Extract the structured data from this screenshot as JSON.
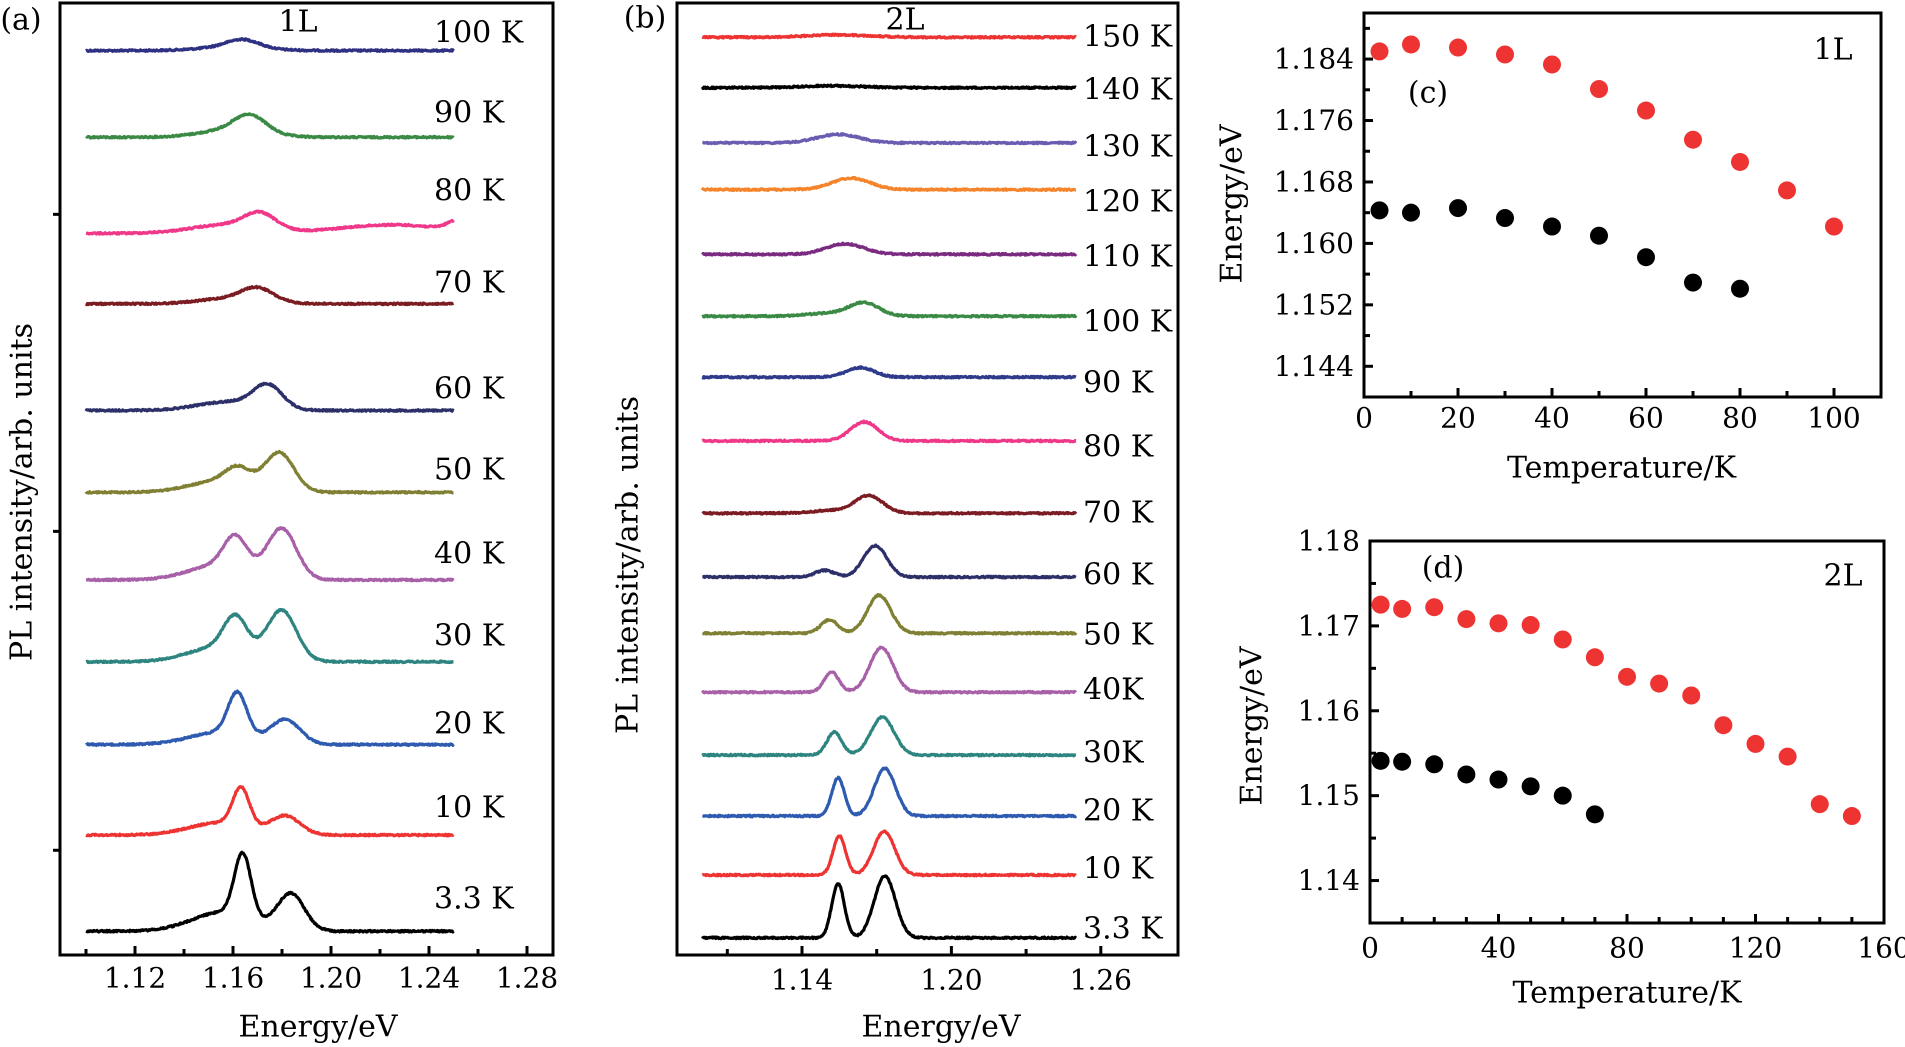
{
  "chart_data": [
    {
      "panel": "(a)",
      "type": "line",
      "annotation": "1L",
      "xlabel": "Energy/eV",
      "ylabel": "PL intensity/arb. units",
      "xlim": [
        1.09,
        1.29
      ],
      "ylim": [
        0,
        100
      ],
      "xticks": [
        "1.12",
        "1.16",
        "1.20",
        "1.24",
        "1.28"
      ],
      "xtick_values": [
        1.12,
        1.16,
        1.2,
        1.24,
        1.28
      ],
      "x_minor_ticks": [
        1.1,
        1.14,
        1.18,
        1.22,
        1.26
      ],
      "y_unlabeled_ticks": [
        11.0,
        44.5,
        77.8
      ],
      "x_range_data": [
        1.1,
        1.25
      ],
      "series": [
        {
          "name": "100 K",
          "color": "#2e3182",
          "offset": 95.0,
          "peaks": [
            {
              "energy": 1.16,
              "height": 0.4,
              "fwhm": 0.03
            },
            {
              "energy": 1.164,
              "height": 0.8,
              "fwhm": 0.015
            }
          ]
        },
        {
          "name": "90 K",
          "color": "#3a8a45",
          "offset": 85.9,
          "peaks": [
            {
              "energy": 1.16,
              "height": 0.8,
              "fwhm": 0.03
            },
            {
              "energy": 1.167,
              "height": 1.7,
              "fwhm": 0.015
            }
          ]
        },
        {
          "name": "80 K",
          "color": "#f0388a",
          "offset": 75.8,
          "peaks": [
            {
              "energy": 1.158,
              "height": 0.9,
              "fwhm": 0.035
            },
            {
              "energy": 1.171,
              "height": 1.6,
              "fwhm": 0.015
            },
            {
              "energy": 1.225,
              "height": 0.9,
              "fwhm": 0.05
            },
            {
              "energy": 1.252,
              "height": 1.0,
              "fwhm": 0.01
            }
          ]
        },
        {
          "name": "70 K",
          "color": "#7a1c22",
          "offset": 68.4,
          "peaks": [
            {
              "energy": 1.16,
              "height": 0.6,
              "fwhm": 0.03
            },
            {
              "energy": 1.17,
              "height": 1.3,
              "fwhm": 0.015
            }
          ]
        },
        {
          "name": "60 K",
          "color": "#2d3068",
          "offset": 57.2,
          "peaks": [
            {
              "energy": 1.158,
              "height": 0.9,
              "fwhm": 0.03
            },
            {
              "energy": 1.1742,
              "height": 2.4,
              "fwhm": 0.014
            }
          ]
        },
        {
          "name": "50 K",
          "color": "#808034",
          "offset": 48.6,
          "peaks": [
            {
              "energy": 1.155,
              "height": 1.2,
              "fwhm": 0.03
            },
            {
              "energy": 1.162,
              "height": 1.7,
              "fwhm": 0.012
            },
            {
              "energy": 1.179,
              "height": 4.0,
              "fwhm": 0.014
            }
          ]
        },
        {
          "name": "40 K",
          "color": "#a860a8",
          "offset": 39.4,
          "peaks": [
            {
              "energy": 1.155,
              "height": 1.6,
              "fwhm": 0.03
            },
            {
              "energy": 1.161,
              "height": 3.3,
              "fwhm": 0.011
            },
            {
              "energy": 1.18,
              "height": 5.2,
              "fwhm": 0.014
            }
          ]
        },
        {
          "name": "30 K",
          "color": "#2e8580",
          "offset": 30.8,
          "peaks": [
            {
              "energy": 1.155,
              "height": 1.6,
              "fwhm": 0.03
            },
            {
              "energy": 1.161,
              "height": 3.5,
              "fwhm": 0.011
            },
            {
              "energy": 1.18,
              "height": 5.2,
              "fwhm": 0.014
            }
          ]
        },
        {
          "name": "20 K",
          "color": "#2e5ab0",
          "offset": 22.1,
          "peaks": [
            {
              "energy": 1.155,
              "height": 1.3,
              "fwhm": 0.03
            },
            {
              "energy": 1.1618,
              "height": 4.4,
              "fwhm": 0.009
            },
            {
              "energy": 1.1815,
              "height": 2.5,
              "fwhm": 0.014
            }
          ]
        },
        {
          "name": "10 K",
          "color": "#ee3333",
          "offset": 12.6,
          "peaks": [
            {
              "energy": 1.155,
              "height": 1.3,
              "fwhm": 0.03
            },
            {
              "energy": 1.1633,
              "height": 4.0,
              "fwhm": 0.008
            },
            {
              "energy": 1.1815,
              "height": 1.9,
              "fwhm": 0.014
            }
          ]
        },
        {
          "name": "3.3 K",
          "color": "#000000",
          "offset": 2.5,
          "peaks": [
            {
              "energy": 1.156,
              "height": 2.0,
              "fwhm": 0.03
            },
            {
              "energy": 1.164,
              "height": 6.6,
              "fwhm": 0.008
            },
            {
              "energy": 1.1837,
              "height": 3.8,
              "fwhm": 0.013
            }
          ]
        }
      ]
    },
    {
      "panel": "(b)",
      "type": "line",
      "annotation": "2L",
      "xlabel": "Energy/eV",
      "ylabel": "PL intensity/arb. units",
      "xlim": [
        1.09,
        1.29
      ],
      "ylim": [
        0,
        100
      ],
      "xticks": [
        "1.14",
        "1.20",
        "1.26"
      ],
      "xtick_values": [
        1.14,
        1.2,
        1.26
      ],
      "x_minor_ticks": [
        1.11,
        1.17,
        1.23
      ],
      "x_range_data": [
        1.1,
        1.25
      ],
      "series": [
        {
          "name": "150 K",
          "color": "#ee3333",
          "offset": 96.4,
          "peaks": [
            {
              "energy": 1.155,
              "height": 0.25,
              "fwhm": 0.03
            }
          ]
        },
        {
          "name": "140 K",
          "color": "#000000",
          "offset": 91.1,
          "peaks": [
            {
              "energy": 1.152,
              "height": 0.2,
              "fwhm": 0.03
            }
          ]
        },
        {
          "name": "130 K",
          "color": "#6a5cb0",
          "offset": 85.3,
          "peaks": [
            {
              "energy": 1.1545,
              "height": 0.9,
              "fwhm": 0.02
            }
          ]
        },
        {
          "name": "120 K",
          "color": "#f5842a",
          "offset": 80.4,
          "peaks": [
            {
              "energy": 1.1597,
              "height": 1.2,
              "fwhm": 0.018
            }
          ]
        },
        {
          "name": "110 K",
          "color": "#7a2a80",
          "offset": 73.6,
          "peaks": [
            {
              "energy": 1.1573,
              "height": 1.1,
              "fwhm": 0.018
            }
          ]
        },
        {
          "name": "100 K",
          "color": "#3a8a45",
          "offset": 67.1,
          "peaks": [
            {
              "energy": 1.15,
              "height": 0.3,
              "fwhm": 0.02
            },
            {
              "energy": 1.165,
              "height": 1.4,
              "fwhm": 0.014
            }
          ]
        },
        {
          "name": "90 K",
          "color": "#2e3a8a",
          "offset": 60.7,
          "peaks": [
            {
              "energy": 1.1634,
              "height": 1.0,
              "fwhm": 0.013
            }
          ]
        },
        {
          "name": "80 K",
          "color": "#f0388a",
          "offset": 54.0,
          "peaks": [
            {
              "energy": 1.165,
              "height": 2.0,
              "fwhm": 0.013
            }
          ]
        },
        {
          "name": "70 K",
          "color": "#7a1c22",
          "offset": 46.4,
          "peaks": [
            {
              "energy": 1.153,
              "height": 0.3,
              "fwhm": 0.02
            },
            {
              "energy": 1.167,
              "height": 1.8,
              "fwhm": 0.013
            }
          ]
        },
        {
          "name": "60 K",
          "color": "#2d3068",
          "offset": 39.7,
          "peaks": [
            {
              "energy": 1.149,
              "height": 0.7,
              "fwhm": 0.009
            },
            {
              "energy": 1.1694,
              "height": 3.3,
              "fwhm": 0.011
            }
          ]
        },
        {
          "name": "50 K",
          "color": "#808034",
          "offset": 33.8,
          "peaks": [
            {
              "energy": 1.151,
              "height": 1.4,
              "fwhm": 0.008
            },
            {
              "energy": 1.171,
              "height": 4.0,
              "fwhm": 0.011
            }
          ]
        },
        {
          "name": "40K",
          "color": "#a860a8",
          "offset": 27.6,
          "peaks": [
            {
              "energy": 1.1519,
              "height": 2.1,
              "fwhm": 0.007
            },
            {
              "energy": 1.1719,
              "height": 4.7,
              "fwhm": 0.011
            }
          ]
        },
        {
          "name": "30K",
          "color": "#2e8580",
          "offset": 21.0,
          "peaks": [
            {
              "energy": 1.153,
              "height": 2.4,
              "fwhm": 0.007
            },
            {
              "energy": 1.1723,
              "height": 4.0,
              "fwhm": 0.011
            }
          ]
        },
        {
          "name": "20 K",
          "color": "#2e5ab0",
          "offset": 14.6,
          "peaks": [
            {
              "energy": 1.1545,
              "height": 4.0,
              "fwhm": 0.006
            },
            {
              "energy": 1.1733,
              "height": 5.0,
              "fwhm": 0.01
            }
          ]
        },
        {
          "name": "10 K",
          "color": "#ee3333",
          "offset": 8.4,
          "peaks": [
            {
              "energy": 1.155,
              "height": 4.1,
              "fwhm": 0.006
            },
            {
              "energy": 1.173,
              "height": 4.6,
              "fwhm": 0.01
            }
          ]
        },
        {
          "name": "3.3 K",
          "color": "#000000",
          "offset": 1.8,
          "peaks": [
            {
              "energy": 1.1545,
              "height": 5.7,
              "fwhm": 0.006
            },
            {
              "energy": 1.1733,
              "height": 6.5,
              "fwhm": 0.01
            }
          ]
        }
      ]
    },
    {
      "panel": "(c)",
      "type": "scatter",
      "annotation": "1L",
      "xlabel": "Temperature/K",
      "ylabel": "Energy/eV",
      "xlim": [
        0,
        110
      ],
      "ylim": [
        1.14,
        1.19
      ],
      "xticks": [
        "0",
        "20",
        "40",
        "60",
        "80",
        "100"
      ],
      "xtick_values": [
        0,
        20,
        40,
        60,
        80,
        100
      ],
      "yticks": [
        "1.144",
        "1.152",
        "1.160",
        "1.168",
        "1.176",
        "1.184"
      ],
      "ytick_values": [
        1.144,
        1.152,
        1.16,
        1.168,
        1.176,
        1.184
      ],
      "series": [
        {
          "color": "#ee3333",
          "x": [
            3.3,
            10,
            20,
            30,
            40,
            50,
            60,
            70,
            80,
            90,
            100
          ],
          "y": [
            1.185,
            1.1859,
            1.1855,
            1.1846,
            1.1833,
            1.1801,
            1.1773,
            1.1735,
            1.1706,
            1.1669,
            1.1622
          ]
        },
        {
          "color": "#000000",
          "x": [
            3.3,
            10,
            20,
            30,
            40,
            50,
            60,
            70,
            80
          ],
          "y": [
            1.1643,
            1.164,
            1.1646,
            1.1633,
            1.1622,
            1.161,
            1.1582,
            1.1549,
            1.1541
          ]
        }
      ]
    },
    {
      "panel": "(d)",
      "type": "scatter",
      "annotation": "2L",
      "xlabel": "Temperature/K",
      "ylabel": "Energy/eV",
      "xlim": [
        0,
        160
      ],
      "ylim": [
        1.135,
        1.18
      ],
      "xticks": [
        "0",
        "40",
        "80",
        "120",
        "160"
      ],
      "xtick_values": [
        0,
        40,
        80,
        120,
        160
      ],
      "yticks": [
        "1.14",
        "1.15",
        "1.16",
        "1.17",
        "1.18"
      ],
      "ytick_values": [
        1.14,
        1.15,
        1.16,
        1.17,
        1.18
      ],
      "series": [
        {
          "color": "#ee3333",
          "x": [
            3.3,
            10,
            20,
            30,
            40,
            50,
            60,
            70,
            80,
            90,
            100,
            110,
            120,
            130,
            140,
            150
          ],
          "y": [
            1.1725,
            1.172,
            1.1722,
            1.1708,
            1.1703,
            1.1701,
            1.1684,
            1.1663,
            1.164,
            1.1632,
            1.1618,
            1.1583,
            1.1561,
            1.1546,
            1.149,
            1.1476
          ]
        },
        {
          "color": "#000000",
          "x": [
            3.3,
            10,
            20,
            30,
            40,
            50,
            60,
            70
          ],
          "y": [
            1.1541,
            1.154,
            1.1537,
            1.1525,
            1.1519,
            1.1511,
            1.15,
            1.1478
          ]
        }
      ]
    }
  ]
}
